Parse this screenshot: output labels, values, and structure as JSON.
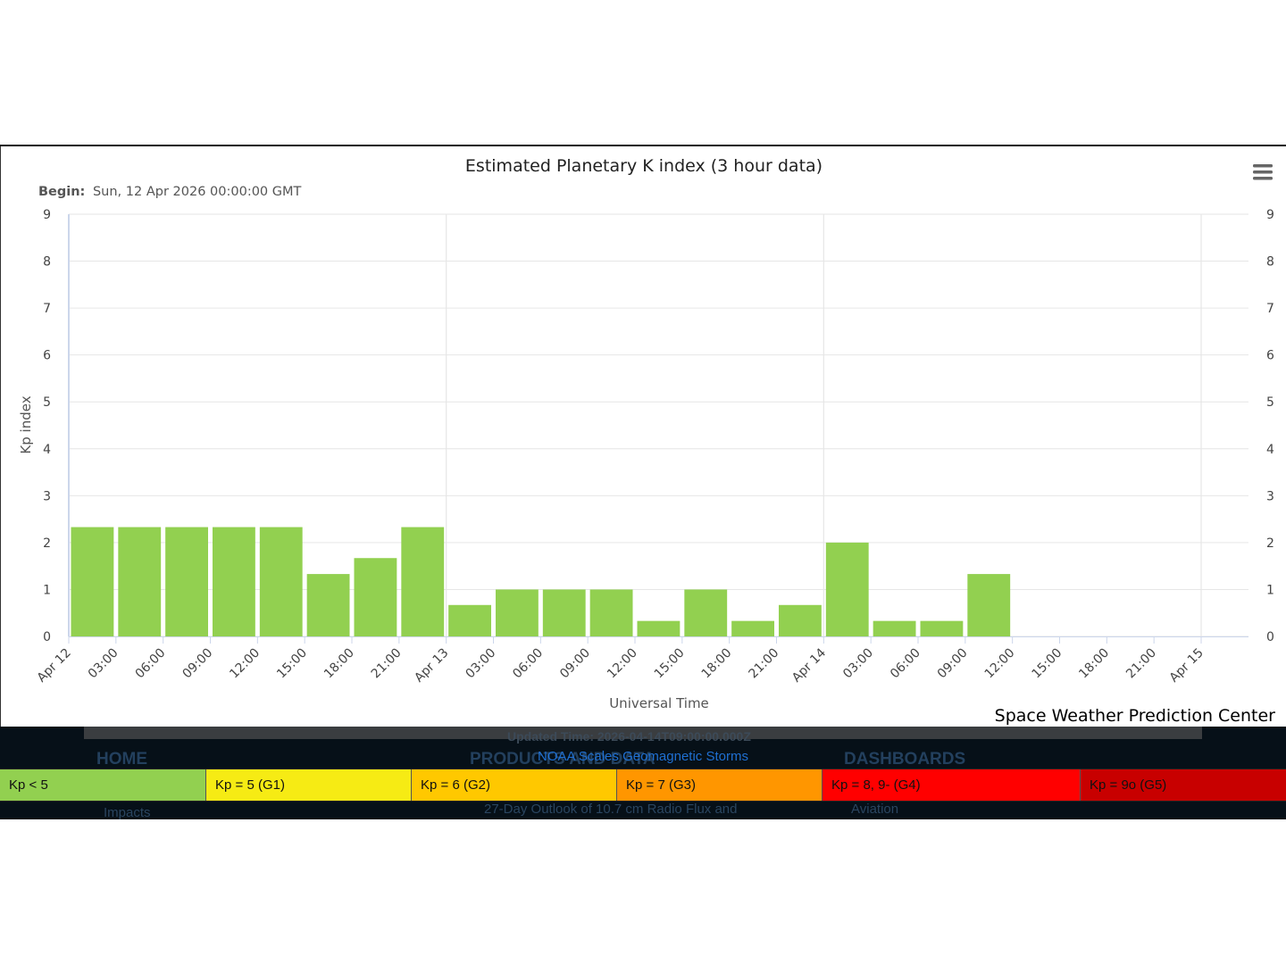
{
  "chart_data": {
    "type": "bar",
    "title": "Estimated Planetary K index (3 hour data)",
    "subtitle_label": "Begin:",
    "subtitle_value": "Sun, 12 Apr 2026 00:00:00 GMT",
    "xlabel": "Universal Time",
    "ylabel": "Kp index",
    "ylim": [
      0,
      9
    ],
    "yticks": [
      "0",
      "1",
      "2",
      "3",
      "4",
      "5",
      "6",
      "7",
      "8",
      "9"
    ],
    "x_tick_labels": [
      "Apr 12",
      "03:00",
      "06:00",
      "09:00",
      "12:00",
      "15:00",
      "18:00",
      "21:00",
      "Apr 13",
      "03:00",
      "06:00",
      "09:00",
      "12:00",
      "15:00",
      "18:00",
      "21:00",
      "Apr 14",
      "03:00",
      "06:00",
      "09:00",
      "12:00",
      "15:00",
      "18:00",
      "21:00",
      "Apr 15"
    ],
    "categories": [
      "Apr 12 00:00",
      "Apr 12 03:00",
      "Apr 12 06:00",
      "Apr 12 09:00",
      "Apr 12 12:00",
      "Apr 12 15:00",
      "Apr 12 18:00",
      "Apr 12 21:00",
      "Apr 13 00:00",
      "Apr 13 03:00",
      "Apr 13 06:00",
      "Apr 13 09:00",
      "Apr 13 12:00",
      "Apr 13 15:00",
      "Apr 13 18:00",
      "Apr 13 21:00",
      "Apr 14 00:00",
      "Apr 14 03:00",
      "Apr 14 06:00",
      "Apr 14 09:00"
    ],
    "values": [
      2.33,
      2.33,
      2.33,
      2.33,
      2.33,
      1.33,
      1.67,
      2.33,
      0.67,
      1.0,
      1.0,
      1.0,
      0.33,
      1.0,
      0.33,
      0.67,
      2.0,
      0.33,
      0.33,
      1.33
    ],
    "bar_color": "#92d050",
    "grid": true,
    "right_axis": true
  },
  "credit": "Space Weather Prediction Center",
  "background_page": {
    "updated": "Updated Time: 2026-04-14T09:00:00.000Z",
    "nav_home": "HOME",
    "nav_products": "PRODUCTS AND DATA",
    "nav_dashboards": "DASHBOARDS",
    "link_impacts": "Impacts",
    "link_outlook": "27-Day Outlook of 10.7 cm Radio Flux and",
    "link_aviation": "Aviation"
  },
  "scales_link": "NOAA Scales Geomagnetic Storms",
  "legend": [
    {
      "label": "Kp < 5",
      "color": "#92d050"
    },
    {
      "label": "Kp = 5 (G1)",
      "color": "#f6eb14"
    },
    {
      "label": "Kp = 6 (G2)",
      "color": "#ffc800"
    },
    {
      "label": "Kp = 7 (G3)",
      "color": "#ff9600"
    },
    {
      "label": "Kp = 8, 9- (G4)",
      "color": "#ff0000"
    },
    {
      "label": "Kp = 9o (G5)",
      "color": "#c80000"
    }
  ]
}
